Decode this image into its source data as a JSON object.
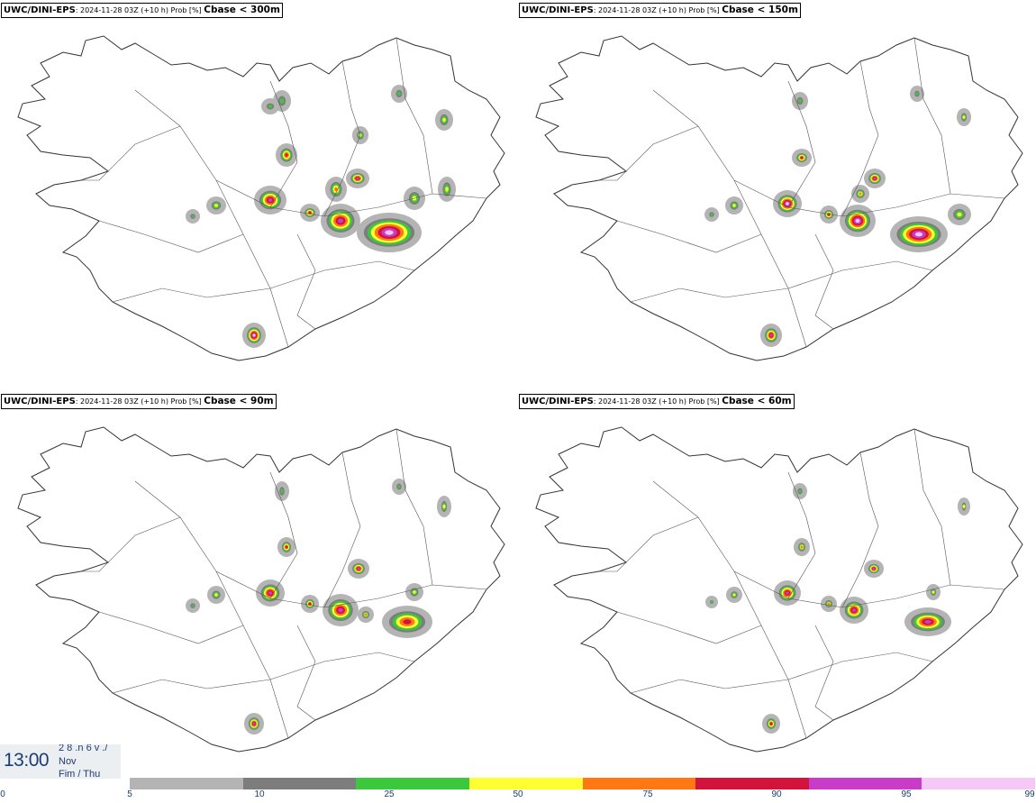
{
  "panels": [
    {
      "model": "UWC/DINI-EPS",
      "run": ": 2024-11-28 03Z (+10 h) Prob [%]",
      "variable": "Cbase < 300m"
    },
    {
      "model": "UWC/DINI-EPS",
      "run": ": 2024-11-28 03Z (+10 h) Prob [%]",
      "variable": "Cbase < 150m"
    },
    {
      "model": "UWC/DINI-EPS",
      "run": ": 2024-11-28 03Z (+10 h) Prob [%]",
      "variable": "Cbase < 90m"
    },
    {
      "model": "UWC/DINI-EPS",
      "run": ": 2024-11-28 03Z (+10 h) Prob [%]",
      "variable": "Cbase < 60m"
    }
  ],
  "valid_time": {
    "time": "13:00",
    "line1": "2 8 .n 6 v ./",
    "line2": "Nov",
    "line3": "Fim / Thu"
  },
  "colorbar": {
    "ticks": [
      "0",
      "5",
      "10",
      "25",
      "50",
      "75",
      "90",
      "95",
      "99"
    ],
    "colors": [
      "#b4b4b4",
      "#7d7d7d",
      "#3cc83c",
      "#ffff32",
      "#ff7814",
      "#d2143c",
      "#c83cc8",
      "#f5c8f5"
    ]
  }
}
